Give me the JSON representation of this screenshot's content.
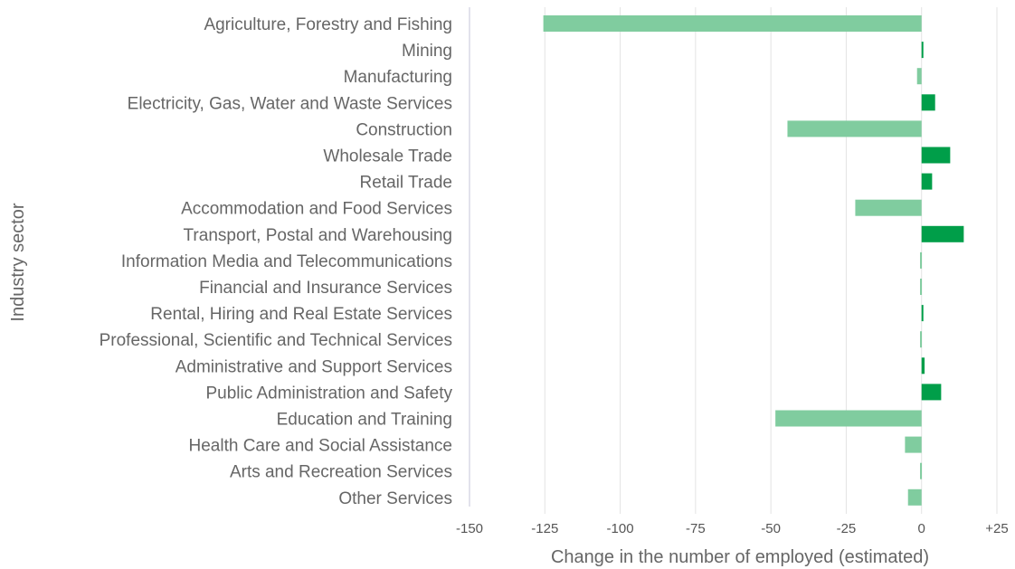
{
  "chart_data": {
    "type": "bar",
    "orientation": "horizontal",
    "xlabel": "Change in the number of employed (estimated)",
    "ylabel": "Industry sector",
    "xlim": [
      -150,
      25
    ],
    "xticks": [
      -150,
      -125,
      -100,
      -75,
      -50,
      -25,
      0,
      25
    ],
    "xtick_labels": [
      "-150",
      "-125",
      "-100",
      "-75",
      "-50",
      "-25",
      "0",
      "+25"
    ],
    "grid": true,
    "colors": {
      "positive": "#009e49",
      "negative": "#80cc9f"
    },
    "categories": [
      "Agriculture, Forestry and Fishing",
      "Mining",
      "Manufacturing",
      "Electricity, Gas, Water and Waste Services",
      "Construction",
      "Wholesale Trade",
      "Retail Trade",
      "Accommodation and Food Services",
      "Transport, Postal and Warehousing",
      "Information Media and Telecommunications",
      "Financial and Insurance Services",
      "Rental, Hiring and Real Estate Services",
      "Professional, Scientific and Technical Services",
      "Administrative and Support Services",
      "Public Administration and Safety",
      "Education and Training",
      "Health Care and Social Assistance",
      "Arts and Recreation Services",
      "Other Services"
    ],
    "values": [
      -125.5,
      0.5,
      -1.5,
      4.5,
      -44.5,
      9.5,
      3.5,
      -22,
      14,
      -0.5,
      -0.5,
      0.5,
      -0.5,
      1,
      6.5,
      -48.5,
      -5.5,
      -0.5,
      -4.5
    ]
  }
}
